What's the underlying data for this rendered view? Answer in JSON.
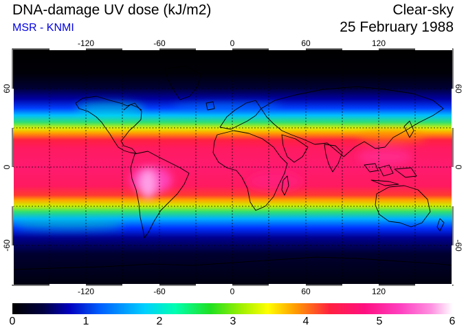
{
  "header": {
    "title": "DNA-damage UV dose (kJ/m2)",
    "subtitle": "MSR - KNMI",
    "sky_condition": "Clear-sky",
    "date": "25 February 1988"
  },
  "map": {
    "projection": "equirectangular",
    "lon_range": [
      -180,
      180
    ],
    "lat_range": [
      -90,
      90
    ],
    "lon_ticks": [
      "-120",
      "-60",
      "0",
      "60",
      "120"
    ],
    "lat_ticks": [
      "60",
      "0",
      "-60"
    ],
    "grid": "dashed",
    "grid_interval_deg": 30
  },
  "colorbar": {
    "ticks": [
      "0",
      "1",
      "2",
      "3",
      "4",
      "5",
      "6"
    ],
    "range": [
      0,
      6
    ],
    "colors": [
      "#000000",
      "#000040",
      "#0000c0",
      "#0060ff",
      "#00d0ff",
      "#00ffb0",
      "#20e020",
      "#a0f000",
      "#ffff00",
      "#ffa000",
      "#ff2040",
      "#ff1080",
      "#ff40c0",
      "#ff90e0",
      "#ffffff"
    ]
  }
}
